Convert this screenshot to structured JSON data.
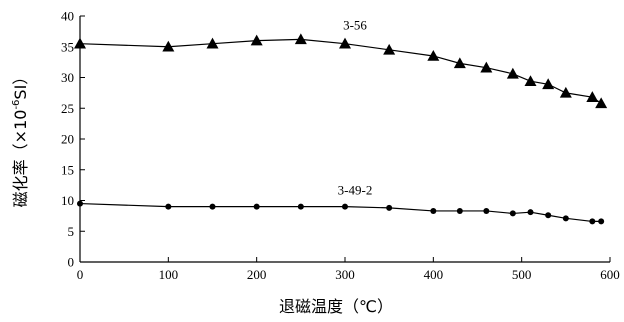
{
  "chart_data": {
    "type": "line",
    "title": "",
    "xlabel": "退磁温度（℃）",
    "ylabel_main": "磁化率（×10",
    "ylabel_exp": "-6",
    "ylabel_unit": "SI）",
    "xlim": [
      0,
      600
    ],
    "ylim": [
      0,
      40
    ],
    "xticks": [
      0,
      100,
      200,
      300,
      400,
      500,
      600
    ],
    "yticks": [
      0,
      5,
      10,
      15,
      20,
      25,
      30,
      35,
      40
    ],
    "grid": false,
    "series": [
      {
        "name": "3-56",
        "marker": "triangle",
        "x": [
          0,
          100,
          150,
          200,
          250,
          300,
          350,
          400,
          430,
          460,
          490,
          510,
          530,
          550,
          580,
          590
        ],
        "y": [
          35.5,
          35.0,
          35.5,
          36.0,
          36.2,
          35.5,
          34.5,
          33.5,
          32.3,
          31.6,
          30.6,
          29.4,
          28.9,
          27.5,
          26.8,
          25.8
        ]
      },
      {
        "name": "3-49-2",
        "marker": "circle",
        "x": [
          0,
          100,
          150,
          200,
          250,
          300,
          350,
          400,
          430,
          460,
          490,
          510,
          530,
          550,
          580,
          590
        ],
        "y": [
          9.5,
          9.0,
          9.0,
          9.0,
          9.0,
          9.0,
          8.8,
          8.3,
          8.3,
          8.3,
          7.9,
          8.1,
          7.6,
          7.1,
          6.6,
          6.6
        ]
      }
    ]
  }
}
